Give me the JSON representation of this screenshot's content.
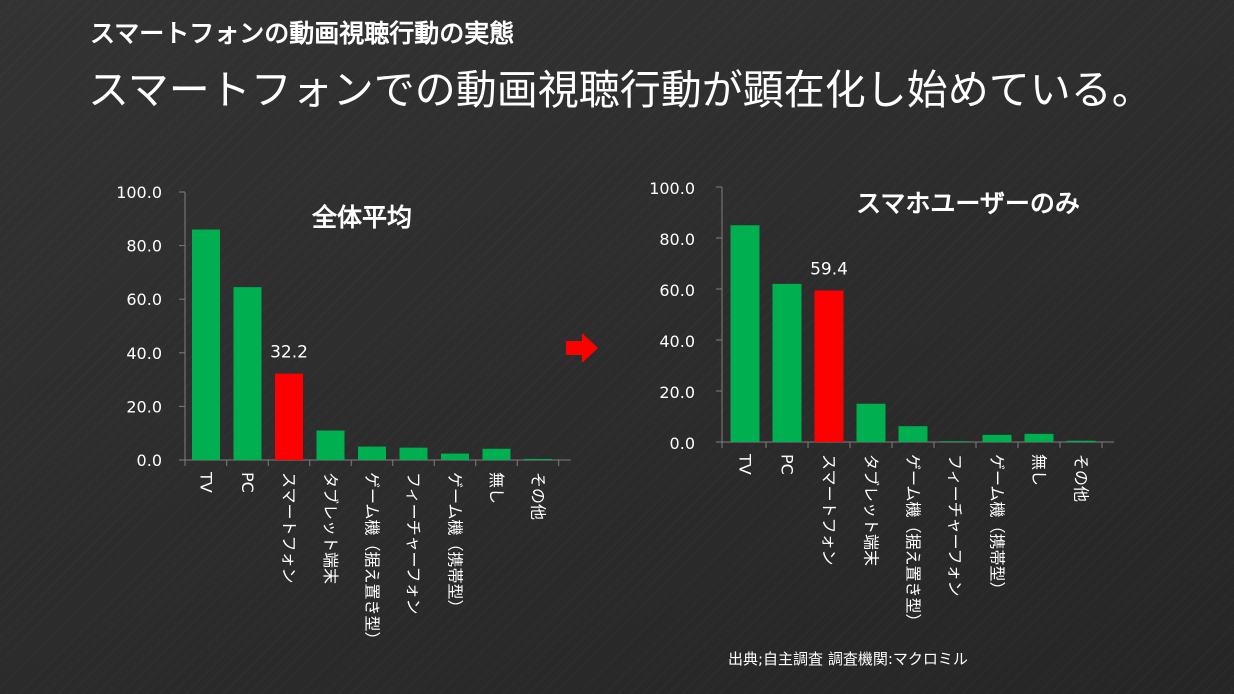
{
  "slide": {
    "subtitle": "スマートフォンの動画視聴行動の実態",
    "headline": "スマートフォンでの動画視聴行動が顕在化し始めている。",
    "source": "出典;自主調査  調査機関:マクロミル"
  },
  "colors": {
    "bar": "#00b050",
    "highlight": "#ff0000",
    "axis": "#7f7f7f",
    "arrow": "#ff0000"
  },
  "chart_data": [
    {
      "type": "bar",
      "title": "全体平均",
      "categories": [
        "TV",
        "PC",
        "スマートフォン",
        "タブレット端末",
        "ゲーム機（据え置き型）",
        "フィーチャーフォン",
        "ゲーム機（携帯型）",
        "無し",
        "その他"
      ],
      "values": [
        86.0,
        64.5,
        32.2,
        11.0,
        5.0,
        4.6,
        2.4,
        4.2,
        0.4
      ],
      "highlight_index": 2,
      "data_labels": [
        {
          "index": 2,
          "text": "32.2"
        }
      ],
      "yticks": [
        "0.0",
        "20.0",
        "40.0",
        "60.0",
        "80.0",
        "100.0"
      ],
      "ylim": [
        0,
        100
      ],
      "grid": false,
      "legend": "none"
    },
    {
      "type": "bar",
      "title": "スマホユーザーのみ",
      "categories": [
        "TV",
        "PC",
        "スマートフォン",
        "タブレット端末",
        "ゲーム機（据え置き型）",
        "フィーチャーフォン",
        "ゲーム機（携帯型）",
        "無し",
        "その他"
      ],
      "values": [
        85.0,
        62.0,
        59.4,
        15.0,
        6.2,
        0.2,
        2.8,
        3.2,
        0.5
      ],
      "highlight_index": 2,
      "data_labels": [
        {
          "index": 2,
          "text": "59.4"
        }
      ],
      "yticks": [
        "0.0",
        "20.0",
        "40.0",
        "60.0",
        "80.0",
        "100.0"
      ],
      "ylim": [
        0,
        100
      ],
      "grid": false,
      "legend": "none"
    }
  ]
}
